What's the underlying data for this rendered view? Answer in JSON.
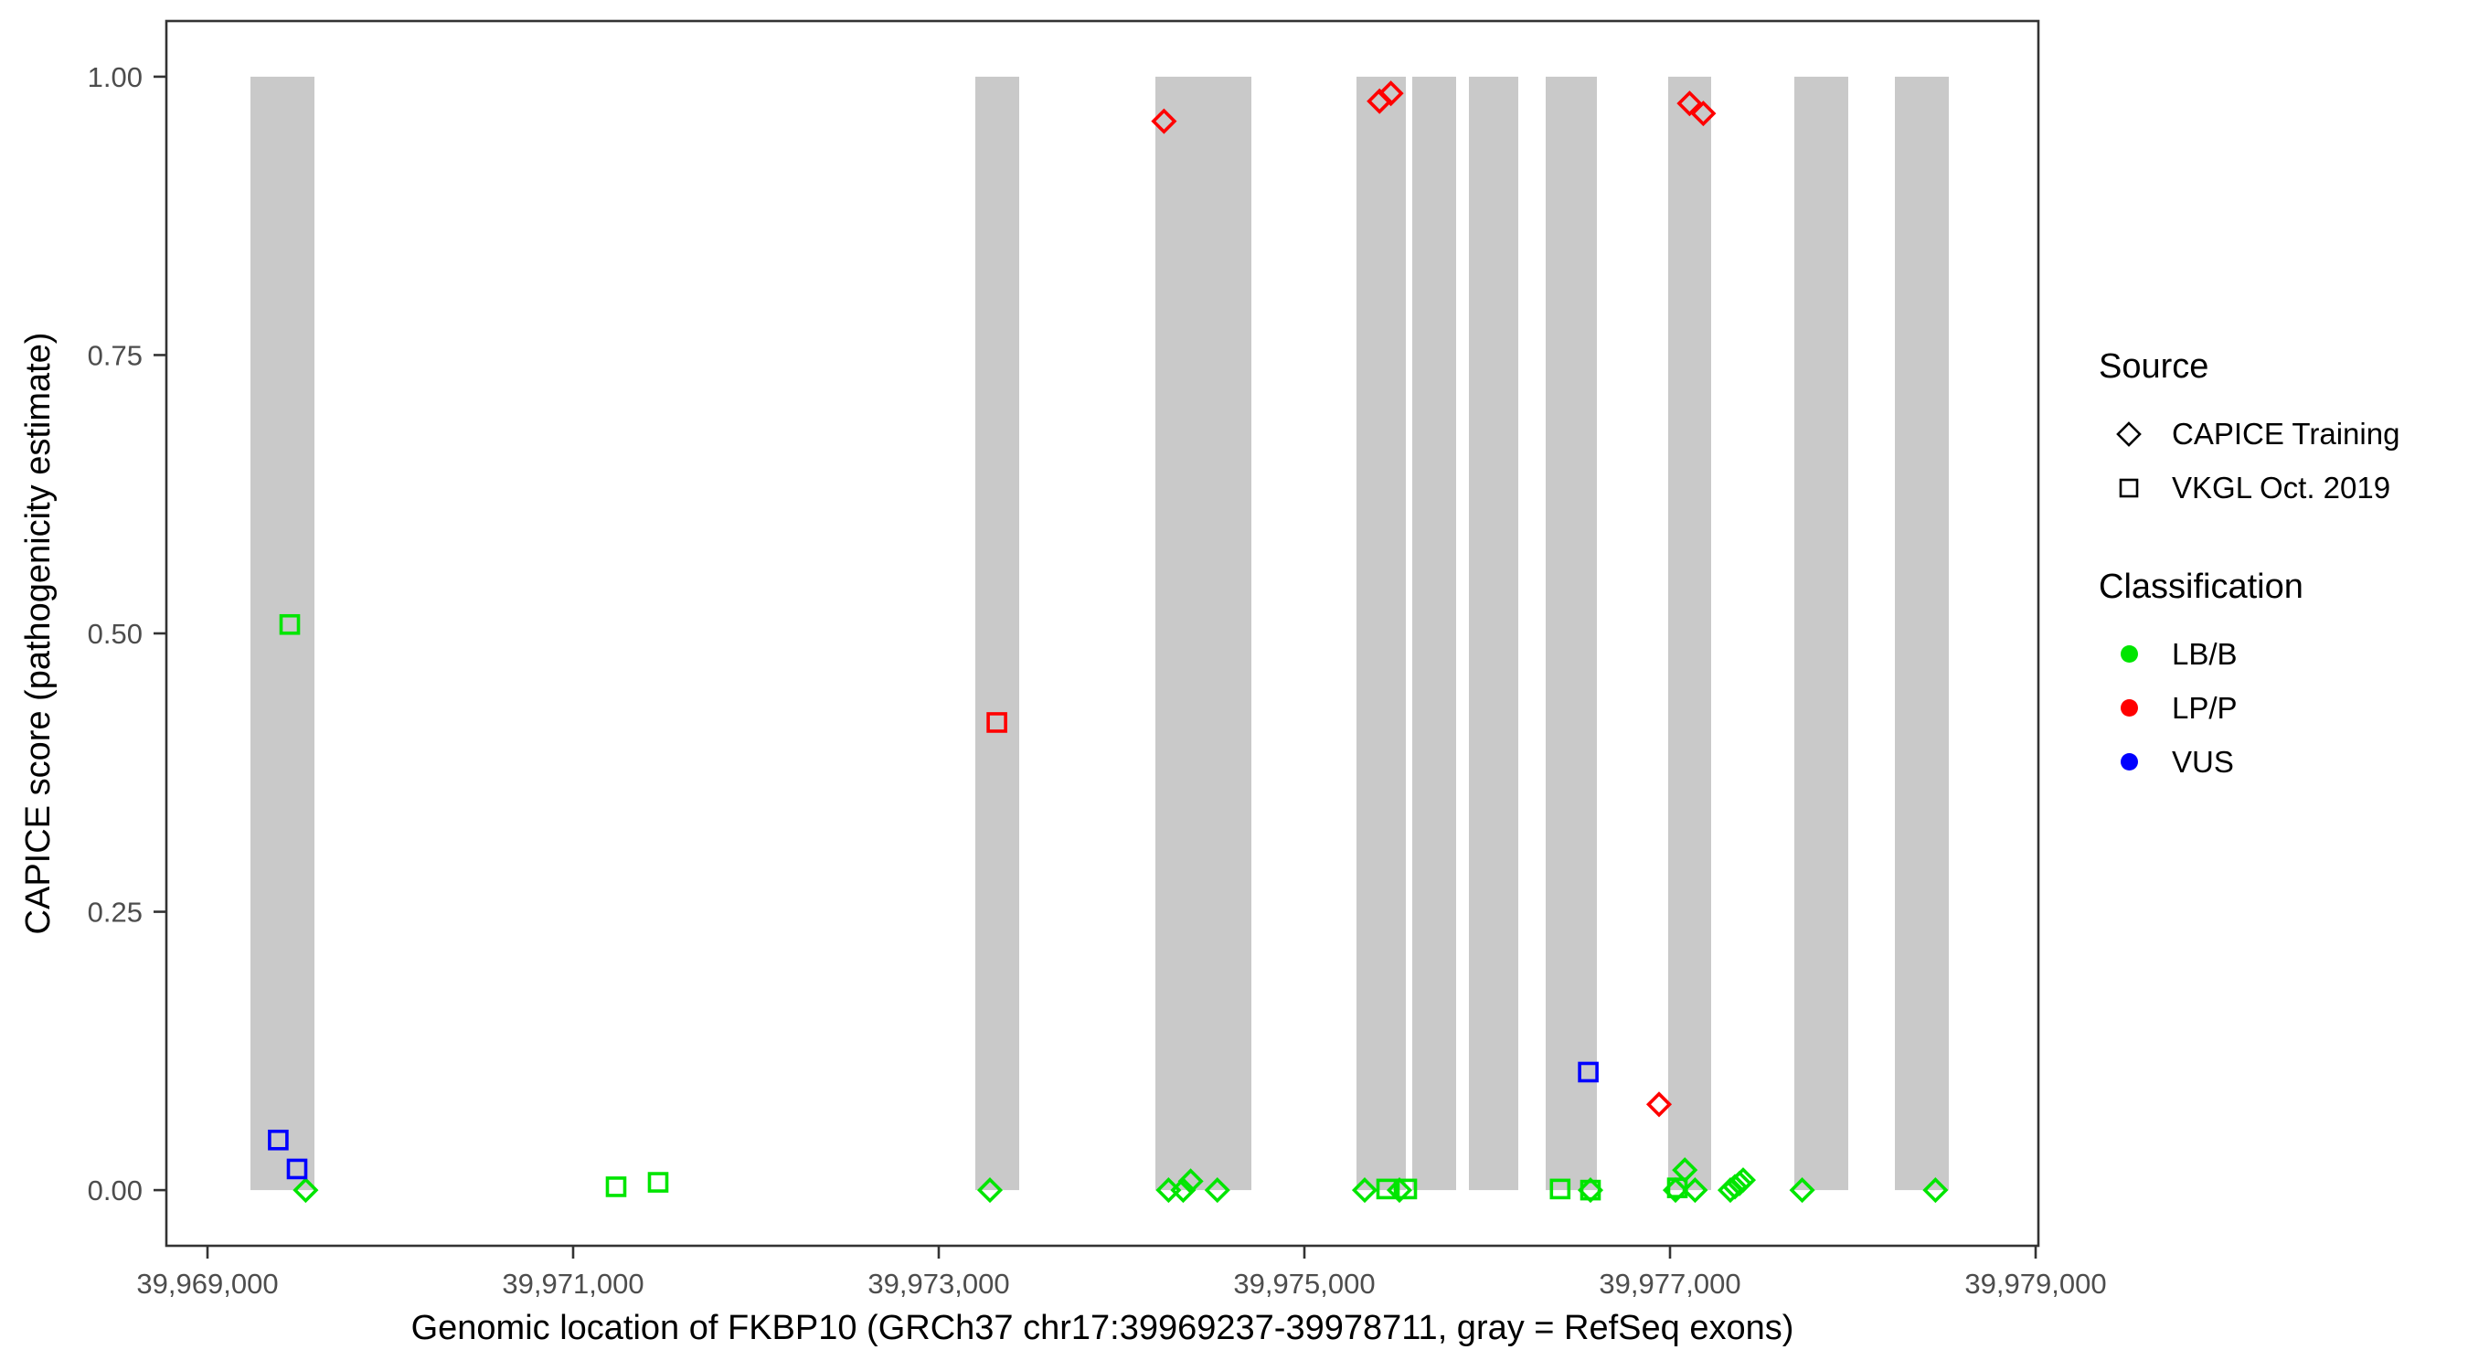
{
  "chart_data": {
    "type": "scatter",
    "title": "",
    "xlabel": "Genomic location of FKBP10 (GRCh37 chr17:39969237-39978711, gray = RefSeq exons)",
    "ylabel": "CAPICE score (pathogenicity estimate)",
    "xlim": [
      39968775,
      39979015
    ],
    "ylim": [
      -0.05,
      1.05
    ],
    "grid": false,
    "legend_position": "right",
    "x_ticks": [
      {
        "value": 39969000,
        "label": "39,969,000"
      },
      {
        "value": 39971000,
        "label": "39,971,000"
      },
      {
        "value": 39973000,
        "label": "39,973,000"
      },
      {
        "value": 39975000,
        "label": "39,975,000"
      },
      {
        "value": 39977000,
        "label": "39,977,000"
      },
      {
        "value": 39979000,
        "label": "39,979,000"
      }
    ],
    "y_ticks": [
      {
        "value": 0.0,
        "label": "0.00"
      },
      {
        "value": 0.25,
        "label": "0.25"
      },
      {
        "value": 0.5,
        "label": "0.50"
      },
      {
        "value": 0.75,
        "label": "0.75"
      },
      {
        "value": 1.0,
        "label": "1.00"
      }
    ],
    "exon_color": "#C9C9C9",
    "exons": [
      [
        39969235,
        39969585
      ],
      [
        39973200,
        39973440
      ],
      [
        39974185,
        39974710
      ],
      [
        39975285,
        39975555
      ],
      [
        39975590,
        39975830
      ],
      [
        39975900,
        39976170
      ],
      [
        39976320,
        39976600
      ],
      [
        39976990,
        39977225
      ],
      [
        39977680,
        39977975
      ],
      [
        39978230,
        39978525
      ]
    ],
    "class_colors": {
      "LB/B": "#00E500",
      "LP/P": "#FF0000",
      "VUS": "#0000FF"
    },
    "series": [
      {
        "name": "CAPICE Training",
        "marker": "diamond",
        "points": [
          {
            "x": 39969537,
            "y": 0.0,
            "class": "LB/B"
          },
          {
            "x": 39973280,
            "y": 0.0,
            "class": "LB/B"
          },
          {
            "x": 39974232,
            "y": 0.96,
            "class": "LP/P"
          },
          {
            "x": 39974257,
            "y": 0.0,
            "class": "LB/B"
          },
          {
            "x": 39974337,
            "y": 0.0,
            "class": "LB/B"
          },
          {
            "x": 39974378,
            "y": 0.008,
            "class": "LB/B"
          },
          {
            "x": 39974524,
            "y": 0.0,
            "class": "LB/B"
          },
          {
            "x": 39975330,
            "y": 0.0,
            "class": "LB/B"
          },
          {
            "x": 39975411,
            "y": 0.978,
            "class": "LP/P"
          },
          {
            "x": 39975473,
            "y": 0.985,
            "class": "LP/P"
          },
          {
            "x": 39975520,
            "y": 0.0,
            "class": "LB/B"
          },
          {
            "x": 39976565,
            "y": 0.0,
            "class": "LB/B"
          },
          {
            "x": 39976940,
            "y": 0.077,
            "class": "LP/P"
          },
          {
            "x": 39977030,
            "y": 0.0,
            "class": "LB/B"
          },
          {
            "x": 39977081,
            "y": 0.018,
            "class": "LB/B"
          },
          {
            "x": 39977107,
            "y": 0.976,
            "class": "LP/P"
          },
          {
            "x": 39977137,
            "y": 0.0,
            "class": "LB/B"
          },
          {
            "x": 39977182,
            "y": 0.967,
            "class": "LP/P"
          },
          {
            "x": 39977330,
            "y": 0.0,
            "class": "LB/B"
          },
          {
            "x": 39977355,
            "y": 0.003,
            "class": "LB/B"
          },
          {
            "x": 39977380,
            "y": 0.006,
            "class": "LB/B"
          },
          {
            "x": 39977400,
            "y": 0.009,
            "class": "LB/B"
          },
          {
            "x": 39977723,
            "y": 0.0,
            "class": "LB/B"
          },
          {
            "x": 39978452,
            "y": 0.0,
            "class": "LB/B"
          }
        ]
      },
      {
        "name": "VKGL Oct. 2019",
        "marker": "square",
        "points": [
          {
            "x": 39969387,
            "y": 0.045,
            "class": "VUS"
          },
          {
            "x": 39969450,
            "y": 0.508,
            "class": "LB/B"
          },
          {
            "x": 39969490,
            "y": 0.019,
            "class": "VUS"
          },
          {
            "x": 39971235,
            "y": 0.003,
            "class": "LB/B"
          },
          {
            "x": 39971465,
            "y": 0.007,
            "class": "LB/B"
          },
          {
            "x": 39973318,
            "y": 0.42,
            "class": "LP/P"
          },
          {
            "x": 39975450,
            "y": 0.001,
            "class": "LB/B"
          },
          {
            "x": 39975560,
            "y": 0.001,
            "class": "LB/B"
          },
          {
            "x": 39976399,
            "y": 0.001,
            "class": "LB/B"
          },
          {
            "x": 39976553,
            "y": 0.106,
            "class": "VUS"
          },
          {
            "x": 39976565,
            "y": 0.0,
            "class": "LB/B"
          },
          {
            "x": 39977040,
            "y": 0.002,
            "class": "LB/B"
          }
        ]
      }
    ]
  },
  "legend": {
    "source": {
      "title": "Source",
      "items": [
        {
          "label": "CAPICE Training",
          "marker": "diamond"
        },
        {
          "label": "VKGL Oct. 2019",
          "marker": "square"
        }
      ]
    },
    "classification": {
      "title": "Classification",
      "items": [
        {
          "label": "LB/B",
          "color": "#00E500"
        },
        {
          "label": "LP/P",
          "color": "#FF0000"
        },
        {
          "label": "VUS",
          "color": "#0000FF"
        }
      ]
    }
  }
}
